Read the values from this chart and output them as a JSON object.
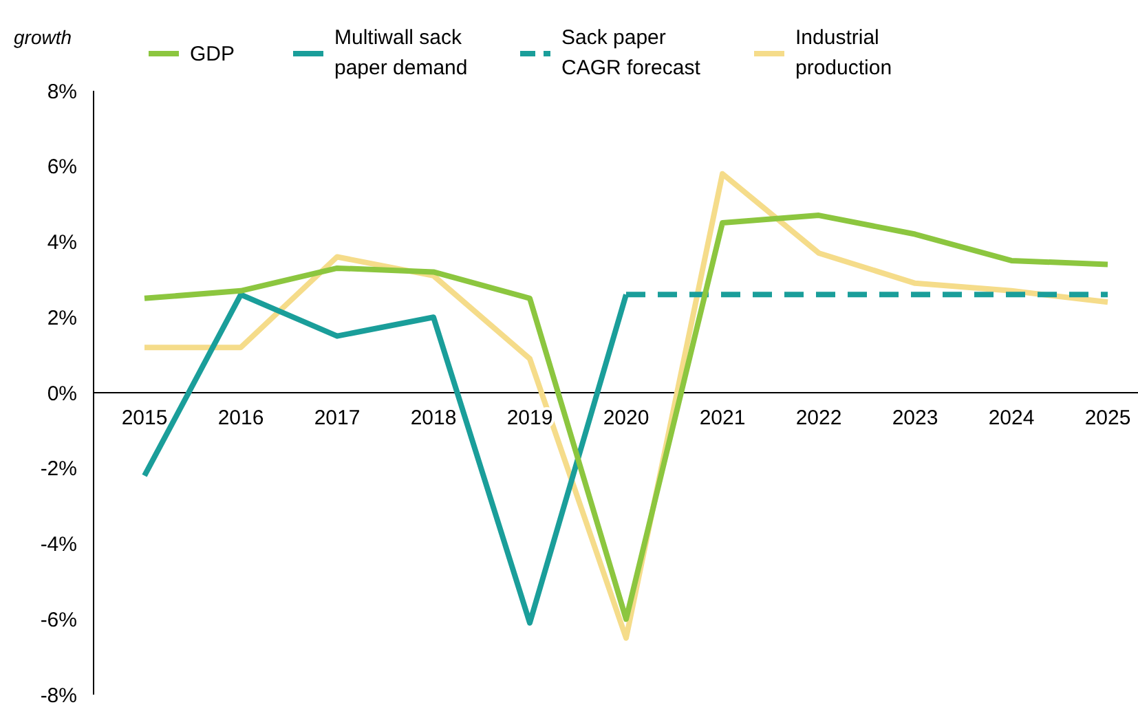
{
  "chart_data": {
    "type": "line",
    "ylabel": "growth",
    "categories": [
      "2015",
      "2016",
      "2017",
      "2018",
      "2019",
      "2020",
      "2021",
      "2022",
      "2023",
      "2024",
      "2025"
    ],
    "ylim": [
      -8,
      8
    ],
    "yticks": [
      {
        "value": -8,
        "label": "-8%"
      },
      {
        "value": -6,
        "label": "-6%"
      },
      {
        "value": -4,
        "label": "-4%"
      },
      {
        "value": -2,
        "label": "-2%"
      },
      {
        "value": 0,
        "label": "0%"
      },
      {
        "value": 2,
        "label": "2%"
      },
      {
        "value": 4,
        "label": "4%"
      },
      {
        "value": 6,
        "label": "6%"
      },
      {
        "value": 8,
        "label": "8%"
      }
    ],
    "grid": false,
    "legend": "top",
    "series": [
      {
        "name": "GDP",
        "color": "#8cc63f",
        "values": [
          2.5,
          2.7,
          3.3,
          3.2,
          2.5,
          -6.0,
          4.5,
          4.7,
          4.2,
          3.5,
          3.4
        ]
      },
      {
        "name": "Multiwall sack paper demand",
        "color": "#1a9e9a",
        "values": [
          -2.2,
          2.6,
          1.5,
          2.0,
          -6.1,
          2.6,
          null,
          null,
          null,
          null,
          null
        ]
      },
      {
        "name": "Sack paper CAGR forecast",
        "color": "#1a9e9a",
        "line_style": "dashed",
        "values": [
          null,
          null,
          null,
          null,
          null,
          2.6,
          2.6,
          2.6,
          2.6,
          2.6,
          2.6
        ]
      },
      {
        "name": "Industrial production",
        "color": "#f5dc8a",
        "values": [
          1.2,
          1.2,
          3.6,
          3.1,
          0.9,
          -6.5,
          5.8,
          3.7,
          2.9,
          2.7,
          2.4
        ]
      }
    ]
  }
}
